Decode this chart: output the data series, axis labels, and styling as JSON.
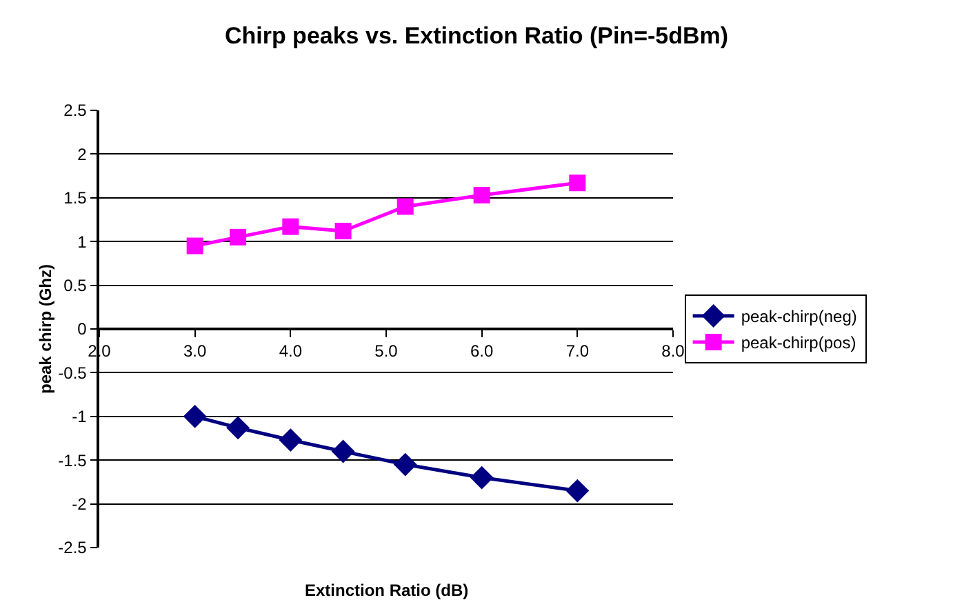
{
  "chart_data": {
    "type": "line",
    "title": "Chirp peaks vs. Extinction Ratio (Pin=-5dBm)",
    "xlabel": "Extinction Ratio (dB)",
    "ylabel": "peak chirp (Ghz)",
    "x": [
      3.0,
      3.45,
      4.0,
      4.55,
      5.2,
      6.0,
      7.0
    ],
    "series": [
      {
        "name": "peak-chirp(neg)",
        "color": "#000080",
        "marker": "diamond",
        "values": [
          -1.0,
          -1.13,
          -1.27,
          -1.4,
          -1.55,
          -1.7,
          -1.85
        ]
      },
      {
        "name": "peak-chirp(pos)",
        "color": "#ff00ff",
        "marker": "square",
        "values": [
          0.95,
          1.05,
          1.17,
          1.12,
          1.4,
          1.53,
          1.67
        ]
      }
    ],
    "xlim": [
      2,
      8
    ],
    "xticks": [
      {
        "value": 2,
        "label": "2.0"
      },
      {
        "value": 3,
        "label": "3.0"
      },
      {
        "value": 4,
        "label": "4.0"
      },
      {
        "value": 5,
        "label": "5.0"
      },
      {
        "value": 6,
        "label": "6.0"
      },
      {
        "value": 7,
        "label": "7.0"
      },
      {
        "value": 8,
        "label": "8.0"
      }
    ],
    "ylim": [
      -2.5,
      2.5
    ],
    "yticks": [
      -2.5,
      -2,
      -1.5,
      -1,
      -0.5,
      0,
      0.5,
      1,
      1.5,
      2,
      2.5
    ],
    "grid": "y",
    "legend": "right",
    "line_style": "solid"
  }
}
